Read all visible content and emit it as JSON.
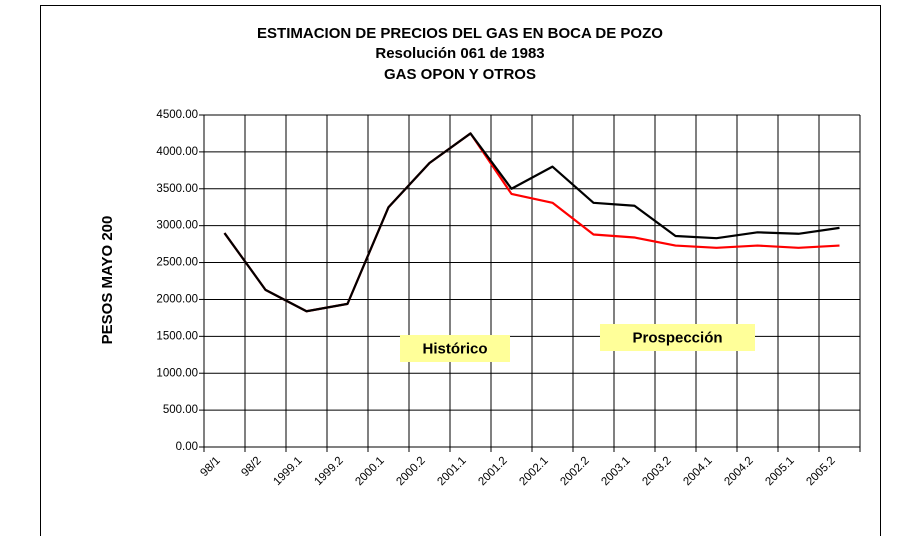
{
  "chart_data": {
    "type": "line",
    "title": "ESTIMACION DE PRECIOS DEL GAS EN BOCA DE POZO",
    "subtitle": [
      "Resolución 061 de 1983",
      "GAS OPON Y OTROS"
    ],
    "y_label": "PESOS MAYO 200",
    "annotations": [
      "Histórico",
      "Prospección"
    ],
    "categories": [
      "98/1",
      "98/2",
      "1999.1",
      "1999.2",
      "2000.1",
      "2000.2",
      "2001.1",
      "2001.2",
      "2002.1",
      "2002.2",
      "2003.1",
      "2003.2",
      "2004.1",
      "2004.2",
      "2005.1",
      "2005.2"
    ],
    "series": [
      {
        "color": "#ff0000",
        "values": [
          2900,
          2130,
          1840,
          1940,
          3250,
          3850,
          4250,
          3430,
          3310,
          2880,
          2840,
          2730,
          2700,
          2730,
          2700,
          2730
        ]
      },
      {
        "color": "#000000",
        "values": [
          2900,
          2130,
          1840,
          1940,
          3250,
          3850,
          4250,
          3500,
          3800,
          3310,
          3270,
          2860,
          2830,
          2910,
          2890,
          2970
        ]
      }
    ],
    "ylim": [
      0,
      4500
    ],
    "yticks": [
      {
        "value": 0,
        "label": "0.00"
      },
      {
        "value": 500,
        "label": "500.00"
      },
      {
        "value": 1000,
        "label": "1000.00"
      },
      {
        "value": 1500,
        "label": "1500.00"
      },
      {
        "value": 2000,
        "label": "2000.00"
      },
      {
        "value": 2500,
        "label": "2500.00"
      },
      {
        "value": 3000,
        "label": "3000.00"
      },
      {
        "value": 3500,
        "label": "3500.00"
      },
      {
        "value": 4000,
        "label": "4000.00"
      },
      {
        "value": 4500,
        "label": "4500.00"
      }
    ],
    "grid": true
  }
}
